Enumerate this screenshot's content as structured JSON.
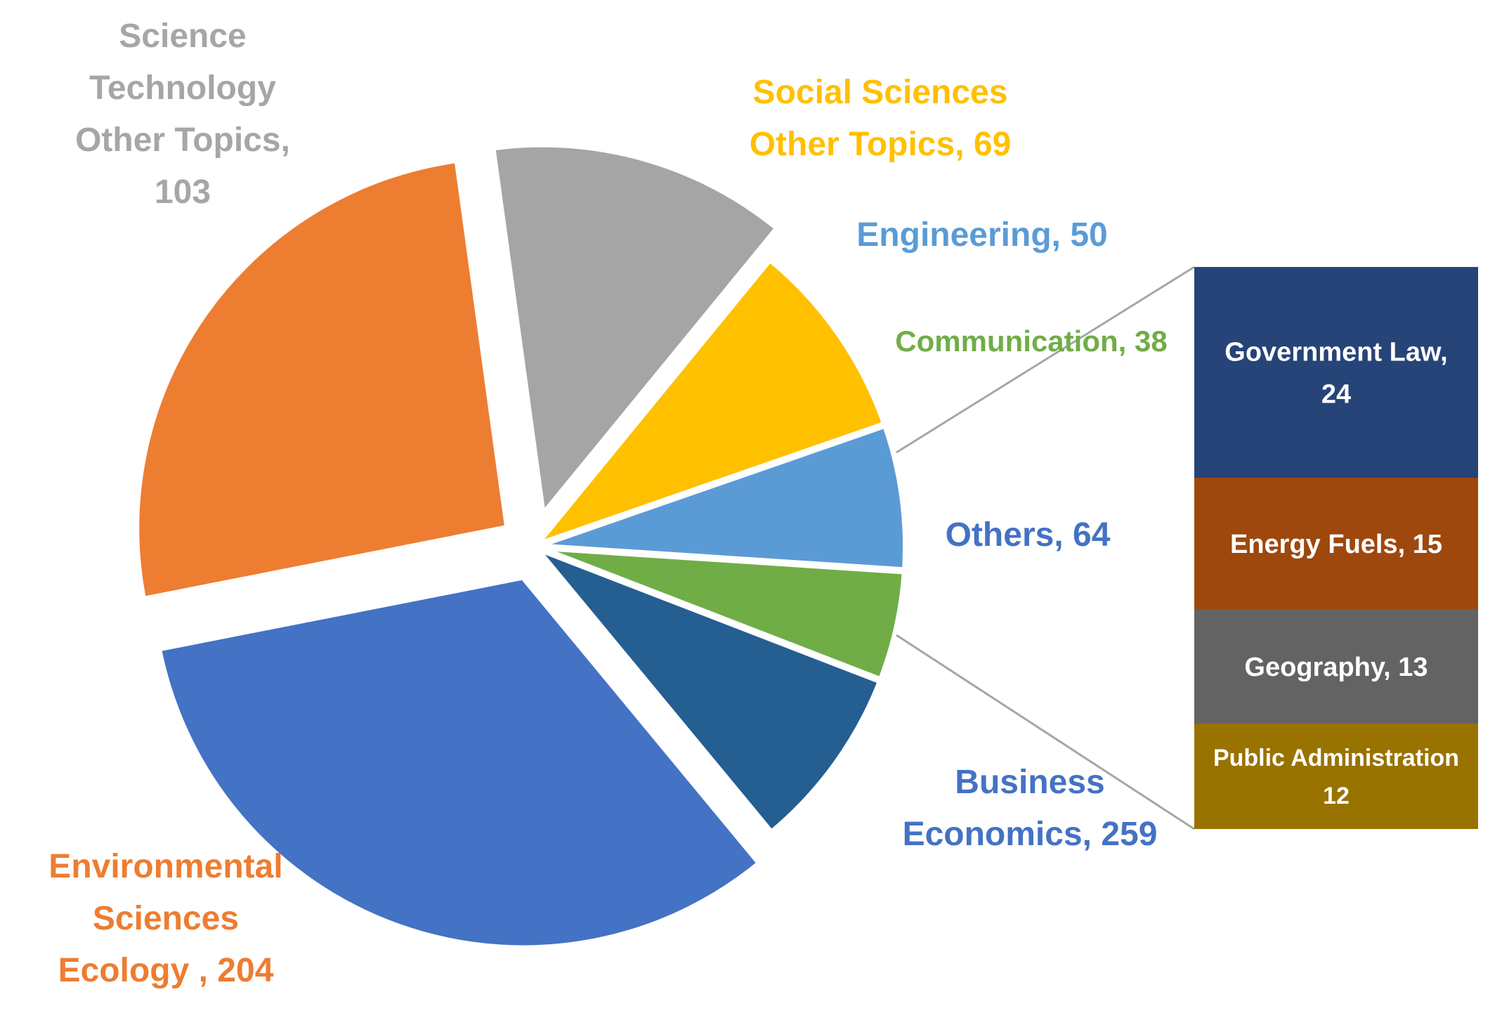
{
  "chart_data": {
    "type": "pie",
    "pie": {
      "slices": [
        {
          "label_lines": [
            "Business",
            "Economics, 259"
          ],
          "value": 259,
          "color": "#4472C4",
          "exploded": true
        },
        {
          "label_lines": [
            "Environmental",
            "Sciences",
            "Ecology  , 204"
          ],
          "value": 204,
          "color": "#ED7D31",
          "exploded": true
        },
        {
          "label_lines": [
            "Science",
            "Technology",
            "Other Topics,",
            "103"
          ],
          "value": 103,
          "color": "#A5A5A5",
          "exploded": true
        },
        {
          "label_lines": [
            "Social Sciences",
            "Other Topics, 69"
          ],
          "value": 69,
          "color": "#FFC000",
          "exploded": false
        },
        {
          "label_lines": [
            "Engineering, 50"
          ],
          "value": 50,
          "color": "#5B9BD5",
          "exploded": false
        },
        {
          "label_lines": [
            "Communication, 38"
          ],
          "value": 38,
          "color": "#70AD47",
          "exploded": false
        },
        {
          "label_lines": [
            "Others, 64"
          ],
          "value": 64,
          "color": "#255E91",
          "exploded": false
        }
      ]
    },
    "breakdown": {
      "parent": "Others, 64",
      "segments": [
        {
          "label_lines": [
            "Government Law,",
            "24"
          ],
          "value": 24,
          "color": "#264478"
        },
        {
          "label_lines": [
            "Energy Fuels, 15"
          ],
          "value": 15,
          "color": "#9E480E"
        },
        {
          "label_lines": [
            "Geography, 13"
          ],
          "value": 13,
          "color": "#636363"
        },
        {
          "label_lines": [
            "Public Administration",
            "12"
          ],
          "value": 12,
          "color": "#997300"
        }
      ]
    }
  }
}
